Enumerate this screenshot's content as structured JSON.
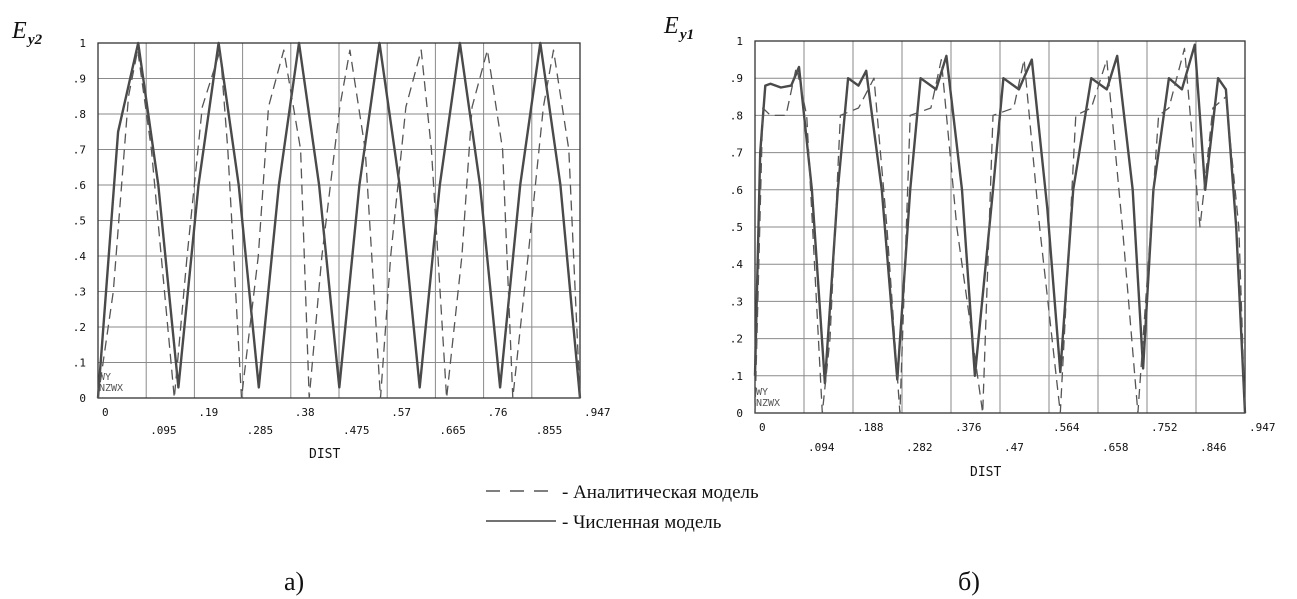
{
  "legend": {
    "analytic_label": "- Аналитическая модель",
    "numeric_label": "- Численная модель"
  },
  "colors": {
    "analytic": "#555555",
    "numeric": "#4a4a4a",
    "grid": "#8a8a8a",
    "axis": "#333333",
    "text": "#111111"
  },
  "chart_data": [
    {
      "type": "line",
      "panel_caption": "a)",
      "ylabel_main": "E",
      "ylabel_sub": "y2",
      "xlabel": "DIST",
      "xlim": [
        0,
        0.947
      ],
      "ylim": [
        0,
        1
      ],
      "x_ticks_low": [
        "0",
        ".19",
        ".38",
        ".57",
        ".76",
        ".947"
      ],
      "x_ticks_high": [
        ".095",
        ".285",
        ".475",
        ".665",
        ".855"
      ],
      "y_ticks": [
        "0",
        ".1",
        ".2",
        ".3",
        ".4",
        ".5",
        ".6",
        ".7",
        ".8",
        ".9",
        "1"
      ],
      "watermark": [
        "WY",
        "NZWX"
      ],
      "grid": true,
      "series": [
        {
          "style": "solid",
          "x": [
            0,
            0.0395,
            0.079,
            0.1185,
            0.158,
            0.1975,
            0.237,
            0.2765,
            0.316,
            0.3555,
            0.395,
            0.4345,
            0.474,
            0.5135,
            0.553,
            0.5925,
            0.632,
            0.6715,
            0.711,
            0.7505,
            0.79,
            0.8295,
            0.869,
            0.9085,
            0.947
          ],
          "y": [
            0.0,
            0.75,
            1.0,
            0.6,
            0.03,
            0.6,
            1.0,
            0.6,
            0.03,
            0.6,
            1.0,
            0.6,
            0.03,
            0.6,
            1.0,
            0.6,
            0.03,
            0.6,
            1.0,
            0.6,
            0.03,
            0.6,
            1.0,
            0.6,
            0.0
          ]
        },
        {
          "style": "dashed",
          "x": [
            0,
            0.03,
            0.06,
            0.078,
            0.105,
            0.15,
            0.175,
            0.205,
            0.24,
            0.255,
            0.282,
            0.315,
            0.335,
            0.365,
            0.398,
            0.415,
            0.44,
            0.475,
            0.495,
            0.525,
            0.555,
            0.575,
            0.605,
            0.635,
            0.655,
            0.685,
            0.715,
            0.735,
            0.765,
            0.795,
            0.815,
            0.845,
            0.875,
            0.895,
            0.925,
            0.947
          ],
          "y": [
            0.0,
            0.3,
            0.85,
            0.98,
            0.7,
            0.0,
            0.4,
            0.82,
            0.98,
            0.7,
            0.0,
            0.4,
            0.82,
            0.98,
            0.7,
            0.0,
            0.4,
            0.82,
            0.98,
            0.7,
            0.0,
            0.4,
            0.82,
            0.98,
            0.7,
            0.0,
            0.4,
            0.82,
            0.98,
            0.7,
            0.0,
            0.4,
            0.82,
            0.98,
            0.7,
            0.0
          ]
        }
      ]
    },
    {
      "type": "line",
      "panel_caption": "б)",
      "ylabel_main": "E",
      "ylabel_sub": "y1",
      "xlabel": "DIST",
      "xlim": [
        0,
        0.947
      ],
      "ylim": [
        0,
        1
      ],
      "x_ticks_low": [
        "0",
        ".188",
        ".376",
        ".564",
        ".752",
        ".947"
      ],
      "x_ticks_high": [
        ".094",
        ".282",
        ".47",
        ".658",
        ".846"
      ],
      "y_ticks": [
        "0",
        ".1",
        ".2",
        ".3",
        ".4",
        ".5",
        ".6",
        ".7",
        ".8",
        ".9",
        "1"
      ],
      "watermark": [
        "WY",
        "NZWX"
      ],
      "grid": true,
      "series": [
        {
          "style": "solid",
          "x": [
            0,
            0.01,
            0.02,
            0.03,
            0.05,
            0.07,
            0.085,
            0.11,
            0.135,
            0.16,
            0.18,
            0.2,
            0.215,
            0.245,
            0.275,
            0.3,
            0.32,
            0.35,
            0.37,
            0.4,
            0.425,
            0.46,
            0.48,
            0.51,
            0.535,
            0.565,
            0.59,
            0.615,
            0.65,
            0.68,
            0.7,
            0.73,
            0.75,
            0.77,
            0.8,
            0.825,
            0.85,
            0.87,
            0.895,
            0.91,
            0.93,
            0.947
          ],
          "y": [
            0.1,
            0.7,
            0.88,
            0.885,
            0.875,
            0.88,
            0.93,
            0.6,
            0.08,
            0.6,
            0.9,
            0.88,
            0.92,
            0.6,
            0.09,
            0.6,
            0.9,
            0.87,
            0.96,
            0.6,
            0.1,
            0.6,
            0.9,
            0.87,
            0.95,
            0.55,
            0.11,
            0.6,
            0.9,
            0.87,
            0.96,
            0.6,
            0.12,
            0.6,
            0.9,
            0.87,
            0.99,
            0.6,
            0.9,
            0.87,
            0.5,
            0.0
          ]
        },
        {
          "style": "dashed",
          "x": [
            0,
            0.015,
            0.03,
            0.06,
            0.08,
            0.1,
            0.13,
            0.145,
            0.165,
            0.2,
            0.23,
            0.255,
            0.28,
            0.3,
            0.34,
            0.36,
            0.39,
            0.44,
            0.46,
            0.5,
            0.52,
            0.55,
            0.59,
            0.62,
            0.65,
            0.68,
            0.71,
            0.74,
            0.78,
            0.8,
            0.83,
            0.86,
            0.885,
            0.91,
            0.935,
            0.947
          ],
          "y": [
            0.0,
            0.82,
            0.8,
            0.8,
            0.93,
            0.8,
            0.0,
            0.2,
            0.8,
            0.82,
            0.9,
            0.5,
            0.0,
            0.8,
            0.82,
            0.95,
            0.5,
            0.0,
            0.8,
            0.82,
            0.95,
            0.5,
            0.0,
            0.8,
            0.82,
            0.95,
            0.5,
            0.0,
            0.8,
            0.82,
            0.98,
            0.5,
            0.82,
            0.85,
            0.5,
            0.0
          ]
        }
      ]
    }
  ]
}
